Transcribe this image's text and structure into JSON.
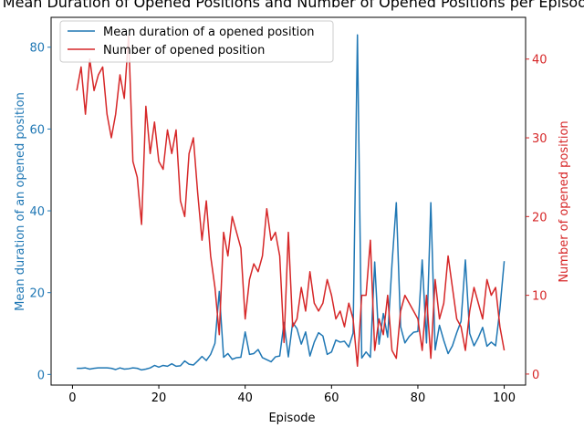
{
  "chart_data": {
    "type": "line",
    "title": "Mean Duration of Opened Positions and Number of Opened Positions per Episode",
    "xlabel": "Episode",
    "ylabel_left": "Mean duration of an opened position",
    "ylabel_right": "Number of opened position",
    "xlim": [
      -4.95,
      104.95
    ],
    "ylim_left": [
      -2.6,
      87.3
    ],
    "ylim_right": [
      -1.4,
      45.3
    ],
    "xticks": [
      0,
      20,
      40,
      60,
      80,
      100
    ],
    "yticks_left": [
      0,
      20,
      40,
      60,
      80
    ],
    "yticks_right": [
      0,
      10,
      20,
      30,
      40
    ],
    "colors": {
      "left": "#1f77b4",
      "right": "#d62728"
    },
    "legend_position": "upper-left",
    "x": [
      1,
      2,
      3,
      4,
      5,
      6,
      7,
      8,
      9,
      10,
      11,
      12,
      13,
      14,
      15,
      16,
      17,
      18,
      19,
      20,
      21,
      22,
      23,
      24,
      25,
      26,
      27,
      28,
      29,
      30,
      31,
      32,
      33,
      34,
      35,
      36,
      37,
      38,
      39,
      40,
      41,
      42,
      43,
      44,
      45,
      46,
      47,
      48,
      49,
      50,
      51,
      52,
      53,
      54,
      55,
      56,
      57,
      58,
      59,
      60,
      61,
      62,
      63,
      64,
      65,
      66,
      67,
      68,
      69,
      70,
      71,
      72,
      73,
      74,
      75,
      76,
      77,
      78,
      79,
      80,
      81,
      82,
      83,
      84,
      85,
      86,
      87,
      88,
      89,
      90,
      91,
      92,
      93,
      94,
      95,
      96,
      97,
      98,
      99,
      100
    ],
    "series": [
      {
        "name": "Mean duration of a opened position",
        "axis": "left",
        "values": [
          1.5,
          1.5,
          1.6,
          1.3,
          1.5,
          1.6,
          1.6,
          1.6,
          1.5,
          1.2,
          1.6,
          1.3,
          1.4,
          1.6,
          1.5,
          1.1,
          1.3,
          1.6,
          2.2,
          1.8,
          2.2,
          2.0,
          2.6,
          2.0,
          2.1,
          3.3,
          2.5,
          2.3,
          3.3,
          4.4,
          3.4,
          4.9,
          7.6,
          20.3,
          4.2,
          5.1,
          3.7,
          4.1,
          4.2,
          10.4,
          4.9,
          5.1,
          6.1,
          4.1,
          3.6,
          3.1,
          4.3,
          4.5,
          12.7,
          4.3,
          12.7,
          11.2,
          7.4,
          10.4,
          4.5,
          7.9,
          10.2,
          9.4,
          4.9,
          5.5,
          8.4,
          7.9,
          8.1,
          6.7,
          10.1,
          83.0,
          4.0,
          5.5,
          4.2,
          27.5,
          7.4,
          14.9,
          9.1,
          26.9,
          42.0,
          11.7,
          7.7,
          9.3,
          10.3,
          10.5,
          28.0,
          7.7,
          42.0,
          6.0,
          12.0,
          8.3,
          5.1,
          7.0,
          10.2,
          13.0,
          28.0,
          10.0,
          7.0,
          9.0,
          11.5,
          6.9,
          7.9,
          7.0,
          16.0,
          27.7
        ]
      },
      {
        "name": "Number of opened position",
        "axis": "right",
        "values": [
          36,
          39,
          33,
          40,
          36,
          38,
          39,
          33,
          30,
          33,
          38,
          35,
          43,
          27,
          25,
          19,
          34,
          28,
          32,
          27,
          26,
          31,
          28,
          31,
          22,
          20,
          28,
          30,
          23,
          17,
          22,
          15,
          11,
          5,
          18,
          15,
          20,
          18,
          16,
          7,
          12,
          14,
          13,
          15,
          21,
          17,
          18,
          15,
          4,
          18,
          6,
          7,
          11,
          8,
          13,
          9,
          8,
          9,
          12,
          10,
          7,
          8,
          6,
          9,
          7,
          1,
          10,
          10,
          17,
          3,
          7,
          5,
          10,
          3,
          2,
          8,
          10,
          9,
          8,
          7,
          3,
          10,
          2,
          12,
          7,
          9,
          15,
          11,
          7,
          6,
          3,
          8,
          11,
          9,
          7,
          12,
          10,
          11,
          6,
          3
        ]
      }
    ]
  }
}
